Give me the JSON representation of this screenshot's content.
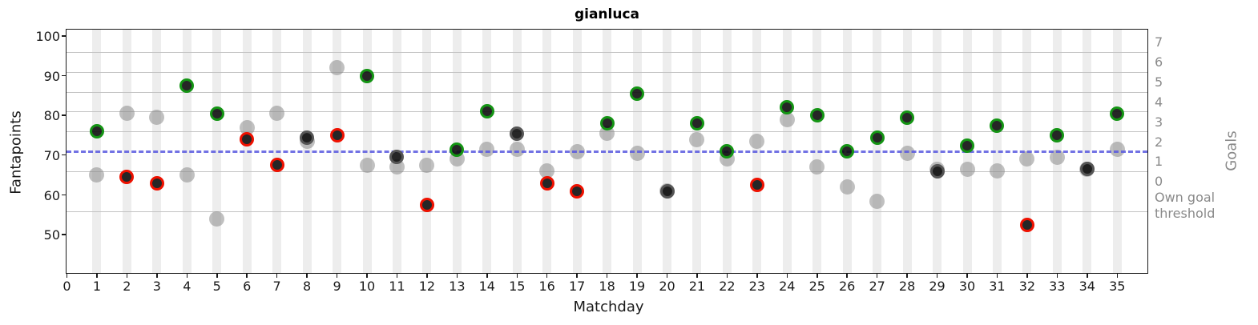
{
  "title": "gianluca",
  "axes": {
    "x": {
      "label": "Matchday",
      "tick_min": 0,
      "tick_max": 35,
      "tick_step": 1,
      "xlim": [
        0,
        36
      ]
    },
    "y_left": {
      "label": "Fantapoints",
      "ticks": [
        50,
        60,
        70,
        80,
        90,
        100
      ],
      "ylim": [
        40.4,
        101.6
      ]
    },
    "y_right": {
      "label": "Goals",
      "ticks": [
        0,
        1,
        2,
        3,
        4,
        5,
        6,
        7
      ],
      "goal0_fantapoints": 63.5,
      "fantapoints_per_goal": 5,
      "own_goal_label": "Own goal threshold",
      "own_goal_label_fantapoints": 59.3
    }
  },
  "gridlines_fantapoints": [
    56,
    66,
    76,
    81,
    86,
    91,
    96
  ],
  "reference_line": {
    "fantapoints": 71,
    "color": "#5a5ae0",
    "style": "dashed"
  },
  "colors": {
    "win_edge": "#149414",
    "loss_edge": "#ee1100",
    "draw_edge": "#555555",
    "main_fill": "#1a1a1a",
    "gray_dot": "#c1c1c1",
    "band": "#ededed",
    "gridline": "#c3c3c3",
    "right_axis_text": "#8a8a8a"
  },
  "chart_data": {
    "type": "scatter",
    "title": "gianluca",
    "xlabel": "Matchday",
    "ylabel_left": "Fantapoints",
    "ylabel_right": "Goals",
    "x": [
      1,
      2,
      3,
      4,
      5,
      6,
      7,
      8,
      9,
      10,
      11,
      12,
      13,
      14,
      15,
      16,
      17,
      18,
      19,
      20,
      21,
      22,
      23,
      24,
      25,
      26,
      27,
      28,
      29,
      30,
      31,
      32,
      33,
      34,
      35
    ],
    "series": [
      {
        "name": "fantapoints",
        "marker": "black-dot-colored-edge",
        "values": [
          76,
          64.5,
          63,
          87.5,
          80.5,
          74,
          67.5,
          74.5,
          75,
          90,
          69.5,
          57.5,
          71.5,
          81,
          75.5,
          63,
          61,
          78,
          85.5,
          61,
          78,
          71,
          62.5,
          82,
          80,
          71,
          74.5,
          79.5,
          66,
          72.5,
          77.5,
          52.5,
          75,
          66.5,
          80.5
        ],
        "results": [
          "W",
          "L",
          "L",
          "W",
          "W",
          "L",
          "L",
          "D",
          "L",
          "W",
          "D",
          "L",
          "W",
          "W",
          "D",
          "L",
          "L",
          "W",
          "W",
          "D",
          "W",
          "W",
          "L",
          "W",
          "W",
          "W",
          "W",
          "W",
          "D",
          "W",
          "W",
          "L",
          "W",
          "D",
          "W"
        ]
      },
      {
        "name": "secondary_gray",
        "marker": "gray-dot",
        "values": [
          65,
          80.5,
          79.5,
          65,
          54,
          77,
          80.5,
          73.5,
          92,
          67.5,
          67,
          67.5,
          69,
          71.5,
          71.5,
          66,
          71,
          75.5,
          70.5,
          61,
          74,
          69,
          73.5,
          79,
          67,
          62,
          58.5,
          70.5,
          66.5,
          66.5,
          66,
          69,
          69.5,
          66.5,
          71.5
        ]
      }
    ],
    "grid": "horizontal lines at goal thresholds, vertical band per matchday",
    "legend": "none"
  },
  "layout_note": "reference dashed line drawn at fantapoints = 71"
}
